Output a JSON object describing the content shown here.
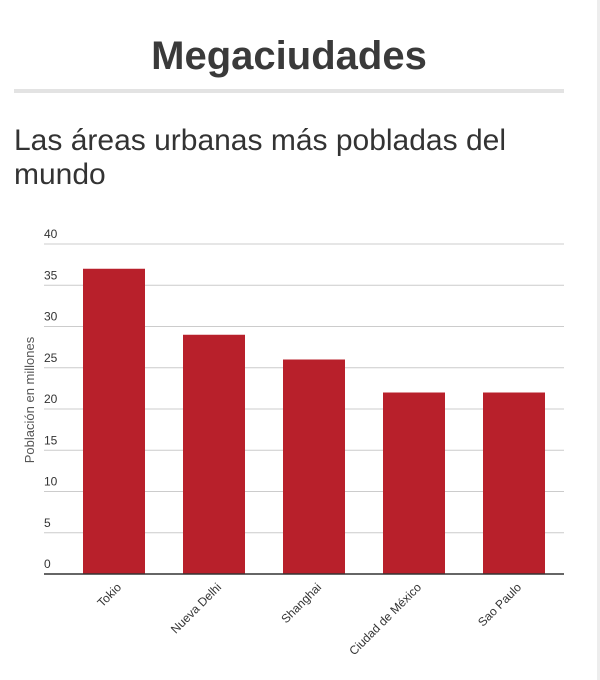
{
  "header": {
    "title": "Megaciudades"
  },
  "chart_data": {
    "type": "bar",
    "title": "Las áreas urbanas más pobladas del mundo",
    "xlabel": "",
    "ylabel": "Población en millones",
    "categories": [
      "Tokio",
      "Nueva Delhi",
      "Shanghai",
      "Ciudad de México",
      "Sao Paulo"
    ],
    "values": [
      37,
      29,
      26,
      22,
      22
    ],
    "ylim": [
      0,
      40
    ],
    "yticks": [
      0,
      5,
      10,
      15,
      20,
      25,
      30,
      35,
      40
    ],
    "grid": true,
    "legend": "none",
    "bar_color": "#b8202b",
    "grid_color": "#cccccc",
    "axis_color": "#333333"
  }
}
